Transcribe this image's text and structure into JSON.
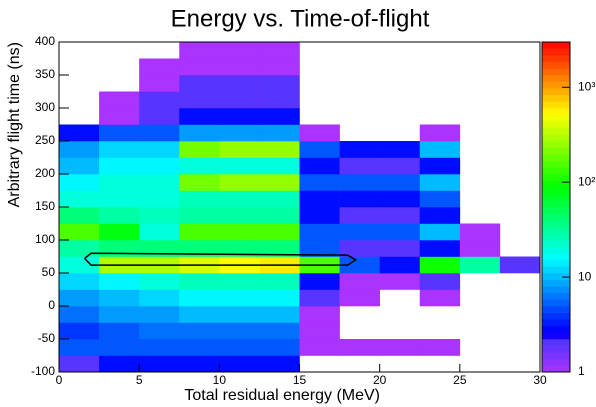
{
  "chart_data": {
    "type": "heatmap",
    "title": "Energy vs. Time-of-flight",
    "x_label": "Total residual energy (MeV)",
    "y_label": "Arbitrary flight time (ns)",
    "xlim": [
      0,
      30
    ],
    "ylim": [
      -100,
      400
    ],
    "xticks": [
      0,
      5,
      10,
      15,
      20,
      25,
      30
    ],
    "yticks": [
      -100,
      -50,
      0,
      50,
      100,
      150,
      200,
      250,
      300,
      350,
      400
    ],
    "xbins": [
      0,
      2.5,
      5,
      7.5,
      10,
      12.5,
      15,
      17.5,
      20,
      22.5,
      25,
      27.5,
      30
    ],
    "ybins": [
      -100,
      -75,
      -50,
      -25,
      0,
      25,
      50,
      75,
      100,
      125,
      150,
      175,
      200,
      225,
      250,
      275,
      300,
      325,
      350,
      375,
      400
    ],
    "z": [
      [
        2,
        3,
        3,
        3,
        3,
        3,
        0,
        0,
        0,
        0,
        0,
        0
      ],
      [
        5,
        5,
        5,
        5,
        5,
        5,
        1,
        1,
        1,
        1,
        0,
        0
      ],
      [
        4,
        5,
        6,
        6,
        6,
        6,
        1,
        0,
        0,
        0,
        0,
        0
      ],
      [
        6,
        8,
        8,
        10,
        10,
        10,
        1,
        0,
        0,
        0,
        0,
        0
      ],
      [
        8,
        10,
        12,
        15,
        15,
        15,
        2,
        1,
        0,
        1,
        0,
        0
      ],
      [
        12,
        15,
        20,
        25,
        25,
        25,
        3,
        1,
        1,
        2,
        0,
        0
      ],
      [
        20,
        300,
        300,
        400,
        500,
        600,
        150,
        5,
        3,
        100,
        30,
        2
      ],
      [
        30,
        40,
        40,
        40,
        40,
        40,
        5,
        2,
        2,
        3,
        1,
        0
      ],
      [
        150,
        80,
        20,
        150,
        150,
        150,
        5,
        5,
        5,
        10,
        1,
        0
      ],
      [
        40,
        30,
        25,
        30,
        30,
        30,
        3,
        2,
        2,
        3,
        0,
        0
      ],
      [
        20,
        20,
        20,
        25,
        25,
        25,
        3,
        3,
        3,
        5,
        0,
        0
      ],
      [
        15,
        20,
        20,
        200,
        250,
        250,
        5,
        5,
        5,
        10,
        0,
        0
      ],
      [
        10,
        15,
        15,
        20,
        20,
        20,
        3,
        2,
        2,
        3,
        0,
        0
      ],
      [
        8,
        12,
        12,
        200,
        250,
        250,
        5,
        3,
        3,
        10,
        0,
        0
      ],
      [
        3,
        5,
        5,
        8,
        8,
        8,
        1,
        0,
        0,
        1,
        0,
        0
      ],
      [
        0,
        1,
        2,
        3,
        3,
        3,
        0,
        0,
        0,
        0,
        0,
        0
      ],
      [
        0,
        1,
        2,
        2,
        2,
        2,
        0,
        0,
        0,
        0,
        0,
        0
      ],
      [
        0,
        0,
        1,
        2,
        2,
        2,
        0,
        0,
        0,
        0,
        0,
        0
      ],
      [
        0,
        0,
        1,
        1,
        1,
        1,
        0,
        0,
        0,
        0,
        0,
        0
      ],
      [
        0,
        0,
        0,
        1,
        1,
        1,
        0,
        0,
        0,
        0,
        0,
        0
      ]
    ],
    "zlim": [
      1,
      3000
    ],
    "zscale": "log",
    "zticks": [
      1,
      10,
      {
        "value": 100,
        "label": "10²"
      },
      {
        "value": 1000,
        "label": "10³"
      }
    ],
    "cut": {
      "x": [
        1.6,
        2,
        18,
        18.5,
        18,
        2,
        1.6
      ],
      "y": [
        72,
        80,
        77,
        70,
        62,
        62,
        72
      ]
    }
  }
}
